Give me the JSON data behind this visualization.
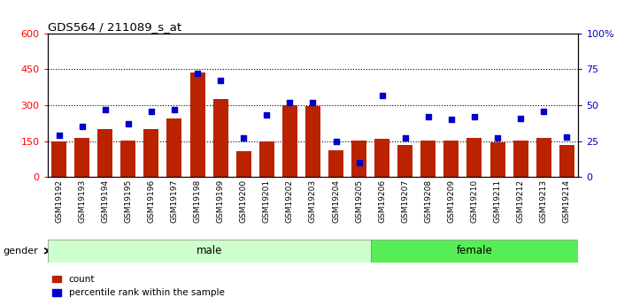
{
  "title": "GDS564 / 211089_s_at",
  "samples": [
    "GSM19192",
    "GSM19193",
    "GSM19194",
    "GSM19195",
    "GSM19196",
    "GSM19197",
    "GSM19198",
    "GSM19199",
    "GSM19200",
    "GSM19201",
    "GSM19202",
    "GSM19203",
    "GSM19204",
    "GSM19205",
    "GSM19206",
    "GSM19207",
    "GSM19208",
    "GSM19209",
    "GSM19210",
    "GSM19211",
    "GSM19212",
    "GSM19213",
    "GSM19214"
  ],
  "counts": [
    148,
    163,
    200,
    153,
    200,
    243,
    438,
    325,
    107,
    148,
    300,
    298,
    110,
    153,
    158,
    133,
    153,
    153,
    163,
    143,
    153,
    163,
    133
  ],
  "percentiles": [
    29,
    35,
    47,
    37,
    46,
    47,
    72,
    67,
    27,
    43,
    52,
    52,
    25,
    10,
    57,
    27,
    42,
    40,
    42,
    27,
    41,
    46,
    28
  ],
  "gender": [
    "male",
    "male",
    "male",
    "male",
    "male",
    "male",
    "male",
    "male",
    "male",
    "male",
    "male",
    "male",
    "male",
    "male",
    "female",
    "female",
    "female",
    "female",
    "female",
    "female",
    "female",
    "female",
    "female"
  ],
  "male_color": "#ccffcc",
  "female_color": "#55ee55",
  "bar_color": "#bb2200",
  "dot_color": "#0000cc",
  "ylim_left": [
    0,
    600
  ],
  "ylim_right": [
    0,
    100
  ],
  "yticks_left": [
    0,
    150,
    300,
    450,
    600
  ],
  "yticks_right": [
    0,
    25,
    50,
    75,
    100
  ],
  "grid_values": [
    150,
    300,
    450
  ],
  "plot_bg": "#ffffff",
  "axes_bg": "#e8e8e8",
  "tick_bg": "#cccccc"
}
